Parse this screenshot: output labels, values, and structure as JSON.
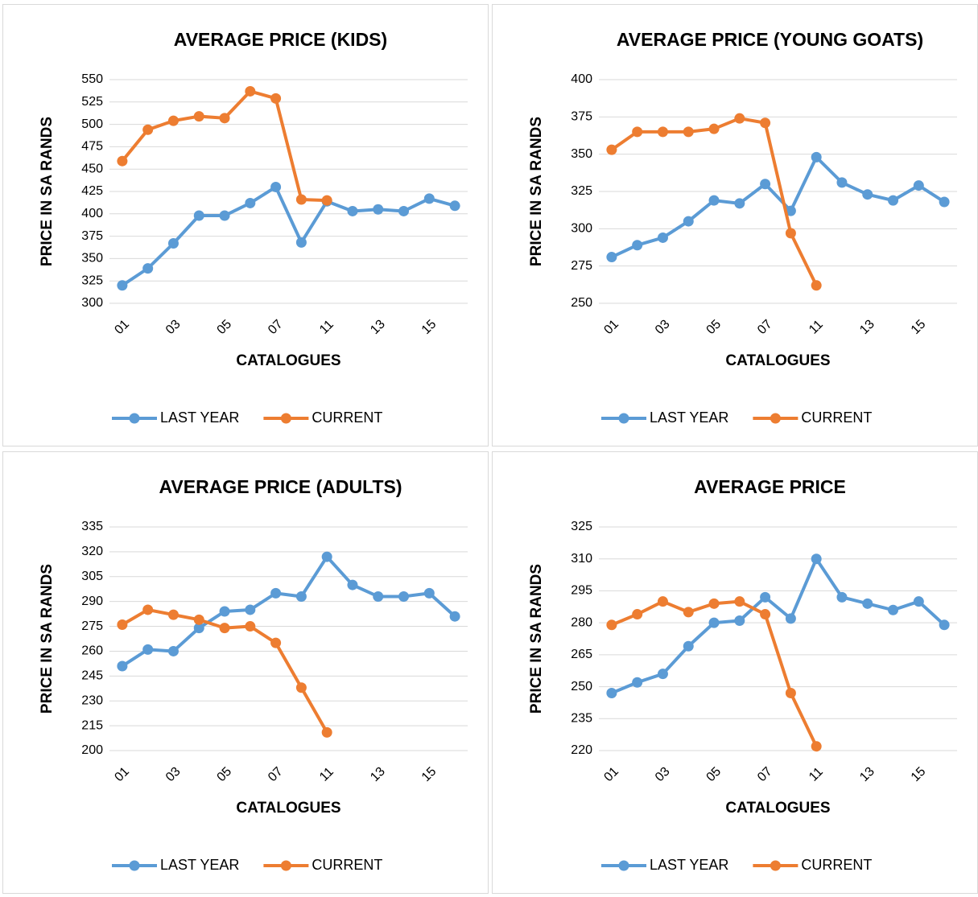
{
  "chart_data": [
    {
      "type": "line",
      "title": "AVERAGE PRICE (KIDS)",
      "x_label": "CATALOGUES",
      "y_label": "PRICE IN SA RANDS",
      "categories": [
        "01",
        null,
        "03",
        null,
        "05",
        null,
        "07",
        null,
        "11",
        null,
        "13",
        null,
        "15",
        null
      ],
      "series": [
        {
          "name": "LAST YEAR",
          "color": "#5b9bd5",
          "values": [
            320,
            339,
            367,
            398,
            398,
            412,
            430,
            368,
            414,
            403,
            405,
            403,
            417,
            409
          ]
        },
        {
          "name": "CURRENT",
          "color": "#ed7d31",
          "values": [
            459,
            494,
            504,
            509,
            507,
            537,
            529,
            416,
            415,
            null,
            null,
            null,
            null,
            null
          ]
        }
      ],
      "ylim": [
        300,
        550
      ],
      "yticks": [
        300,
        325,
        350,
        375,
        400,
        425,
        450,
        475,
        500,
        525,
        550
      ],
      "grid": true,
      "legend": "bottom"
    },
    {
      "type": "line",
      "title": "AVERAGE PRICE (YOUNG GOATS)",
      "x_label": "CATALOGUES",
      "y_label": "PRICE IN SA RANDS",
      "categories": [
        "01",
        null,
        "03",
        null,
        "05",
        null,
        "07",
        null,
        "11",
        null,
        "13",
        null,
        "15",
        null
      ],
      "series": [
        {
          "name": "LAST YEAR",
          "color": "#5b9bd5",
          "values": [
            281,
            289,
            294,
            305,
            319,
            317,
            330,
            312,
            348,
            331,
            323,
            319,
            329,
            318
          ]
        },
        {
          "name": "CURRENT",
          "color": "#ed7d31",
          "values": [
            353,
            365,
            365,
            365,
            367,
            374,
            371,
            297,
            262,
            null,
            null,
            null,
            null,
            null
          ]
        }
      ],
      "ylim": [
        250,
        400
      ],
      "yticks": [
        250,
        275,
        300,
        325,
        350,
        375,
        400
      ],
      "grid": true,
      "legend": "bottom"
    },
    {
      "type": "line",
      "title": "AVERAGE PRICE (ADULTS)",
      "x_label": "CATALOGUES",
      "y_label": "PRICE IN SA RANDS",
      "categories": [
        "01",
        null,
        "03",
        null,
        "05",
        null,
        "07",
        null,
        "11",
        null,
        "13",
        null,
        "15",
        null
      ],
      "series": [
        {
          "name": "LAST YEAR",
          "color": "#5b9bd5",
          "values": [
            251,
            261,
            260,
            274,
            284,
            285,
            295,
            293,
            317,
            300,
            293,
            293,
            295,
            281
          ]
        },
        {
          "name": "CURRENT",
          "color": "#ed7d31",
          "values": [
            276,
            285,
            282,
            279,
            274,
            275,
            265,
            238,
            211,
            null,
            null,
            null,
            null,
            null
          ]
        }
      ],
      "ylim": [
        200,
        335
      ],
      "yticks": [
        200,
        215,
        230,
        245,
        260,
        275,
        290,
        305,
        320,
        335
      ],
      "grid": true,
      "legend": "bottom"
    },
    {
      "type": "line",
      "title": "AVERAGE PRICE",
      "x_label": "CATALOGUES",
      "y_label": "PRICE IN SA RANDS",
      "categories": [
        "01",
        null,
        "03",
        null,
        "05",
        null,
        "07",
        null,
        "11",
        null,
        "13",
        null,
        "15",
        null
      ],
      "series": [
        {
          "name": "LAST YEAR",
          "color": "#5b9bd5",
          "values": [
            247,
            252,
            256,
            269,
            280,
            281,
            292,
            282,
            310,
            292,
            289,
            286,
            290,
            279
          ]
        },
        {
          "name": "CURRENT",
          "color": "#ed7d31",
          "values": [
            279,
            284,
            290,
            285,
            289,
            290,
            284,
            247,
            222,
            null,
            null,
            null,
            null,
            null
          ]
        }
      ],
      "ylim": [
        220,
        325
      ],
      "yticks": [
        220,
        235,
        250,
        265,
        280,
        295,
        310,
        325
      ],
      "grid": true,
      "legend": "bottom"
    }
  ]
}
